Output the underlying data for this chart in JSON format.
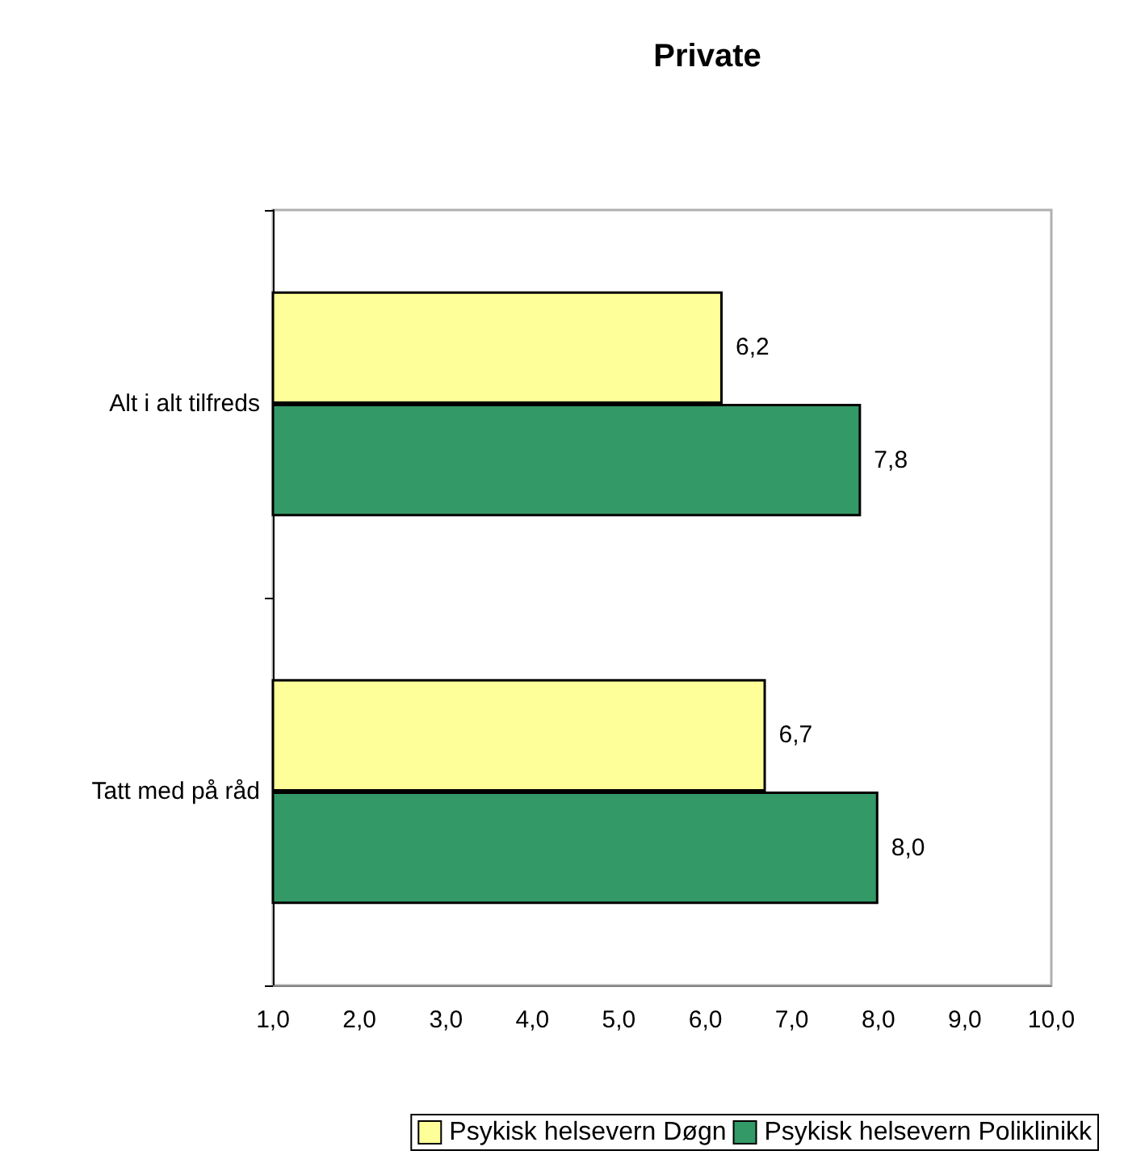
{
  "chart_data": {
    "type": "bar",
    "orientation": "horizontal",
    "title": "Private",
    "categories": [
      "Alt i alt tilfreds",
      "Tatt med på råd"
    ],
    "series": [
      {
        "name": "Psykisk helsevern Døgn",
        "color": "#ffff99",
        "values": [
          6.2,
          6.7
        ],
        "value_labels": [
          "6,2",
          "6,7"
        ]
      },
      {
        "name": "Psykisk helsevern Poliklinikk",
        "color": "#339966",
        "values": [
          7.8,
          8.0
        ],
        "value_labels": [
          "7,8",
          "8,0"
        ]
      }
    ],
    "xlim": [
      1,
      10
    ],
    "xticks": [
      {
        "value": 1,
        "label": "1,0"
      },
      {
        "value": 2,
        "label": "2,0"
      },
      {
        "value": 3,
        "label": "3,0"
      },
      {
        "value": 4,
        "label": "4,0"
      },
      {
        "value": 5,
        "label": "5,0"
      },
      {
        "value": 6,
        "label": "6,0"
      },
      {
        "value": 7,
        "label": "7,0"
      },
      {
        "value": 8,
        "label": "8,0"
      },
      {
        "value": 9,
        "label": "9,0"
      },
      {
        "value": 10,
        "label": "10,0"
      }
    ],
    "grid": false,
    "legend": "bottom"
  }
}
